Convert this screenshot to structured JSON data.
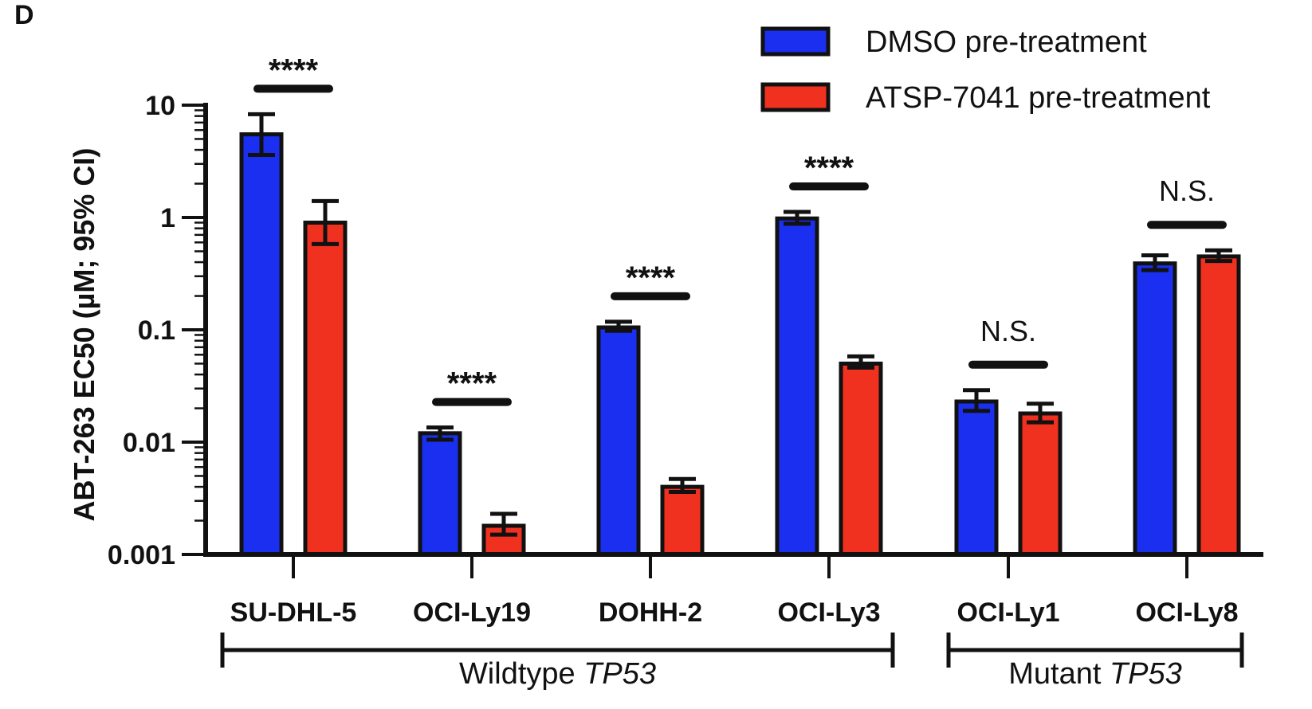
{
  "panel_letter": "D",
  "chart_data": {
    "type": "bar",
    "title": "",
    "xlabel": "",
    "ylabel": "ABT-263 EC50 (µM; 95% CI)",
    "yscale": "log",
    "ylim": [
      0.001,
      10
    ],
    "yticks": [
      0.001,
      0.01,
      0.1,
      1,
      10
    ],
    "ytick_labels": [
      "0.001",
      "0.01",
      "0.1",
      "1",
      "10"
    ],
    "legend": {
      "position": "top-right"
    },
    "categories": [
      "SU-DHL-5",
      "OCI-Ly19",
      "DOHH-2",
      "OCI-Ly3",
      "OCI-Ly1",
      "OCI-Ly8"
    ],
    "series": [
      {
        "name": "DMSO pre-treatment",
        "color": "#1a2ff0",
        "values": [
          5.5,
          0.012,
          0.105,
          0.98,
          0.023,
          0.39
        ],
        "ci_low": [
          3.6,
          0.0105,
          0.098,
          0.88,
          0.019,
          0.34
        ],
        "ci_high": [
          8.3,
          0.0135,
          0.118,
          1.12,
          0.029,
          0.46
        ]
      },
      {
        "name": "ATSP-7041 pre-treatment",
        "color": "#f0311f",
        "values": [
          0.9,
          0.0018,
          0.004,
          0.05,
          0.018,
          0.45
        ],
        "ci_low": [
          0.58,
          0.0015,
          0.0036,
          0.046,
          0.015,
          0.41
        ],
        "ci_high": [
          1.4,
          0.0023,
          0.0047,
          0.058,
          0.022,
          0.51
        ]
      }
    ],
    "significance": [
      "****",
      "****",
      "****",
      "****",
      "N.S.",
      "N.S."
    ],
    "groups": [
      {
        "label": "Wildtype",
        "label_italic": "TP53",
        "categories": [
          "SU-DHL-5",
          "OCI-Ly19",
          "DOHH-2",
          "OCI-Ly3"
        ]
      },
      {
        "label": "Mutant",
        "label_italic": "TP53",
        "categories": [
          "OCI-Ly1",
          "OCI-Ly8"
        ]
      }
    ]
  }
}
